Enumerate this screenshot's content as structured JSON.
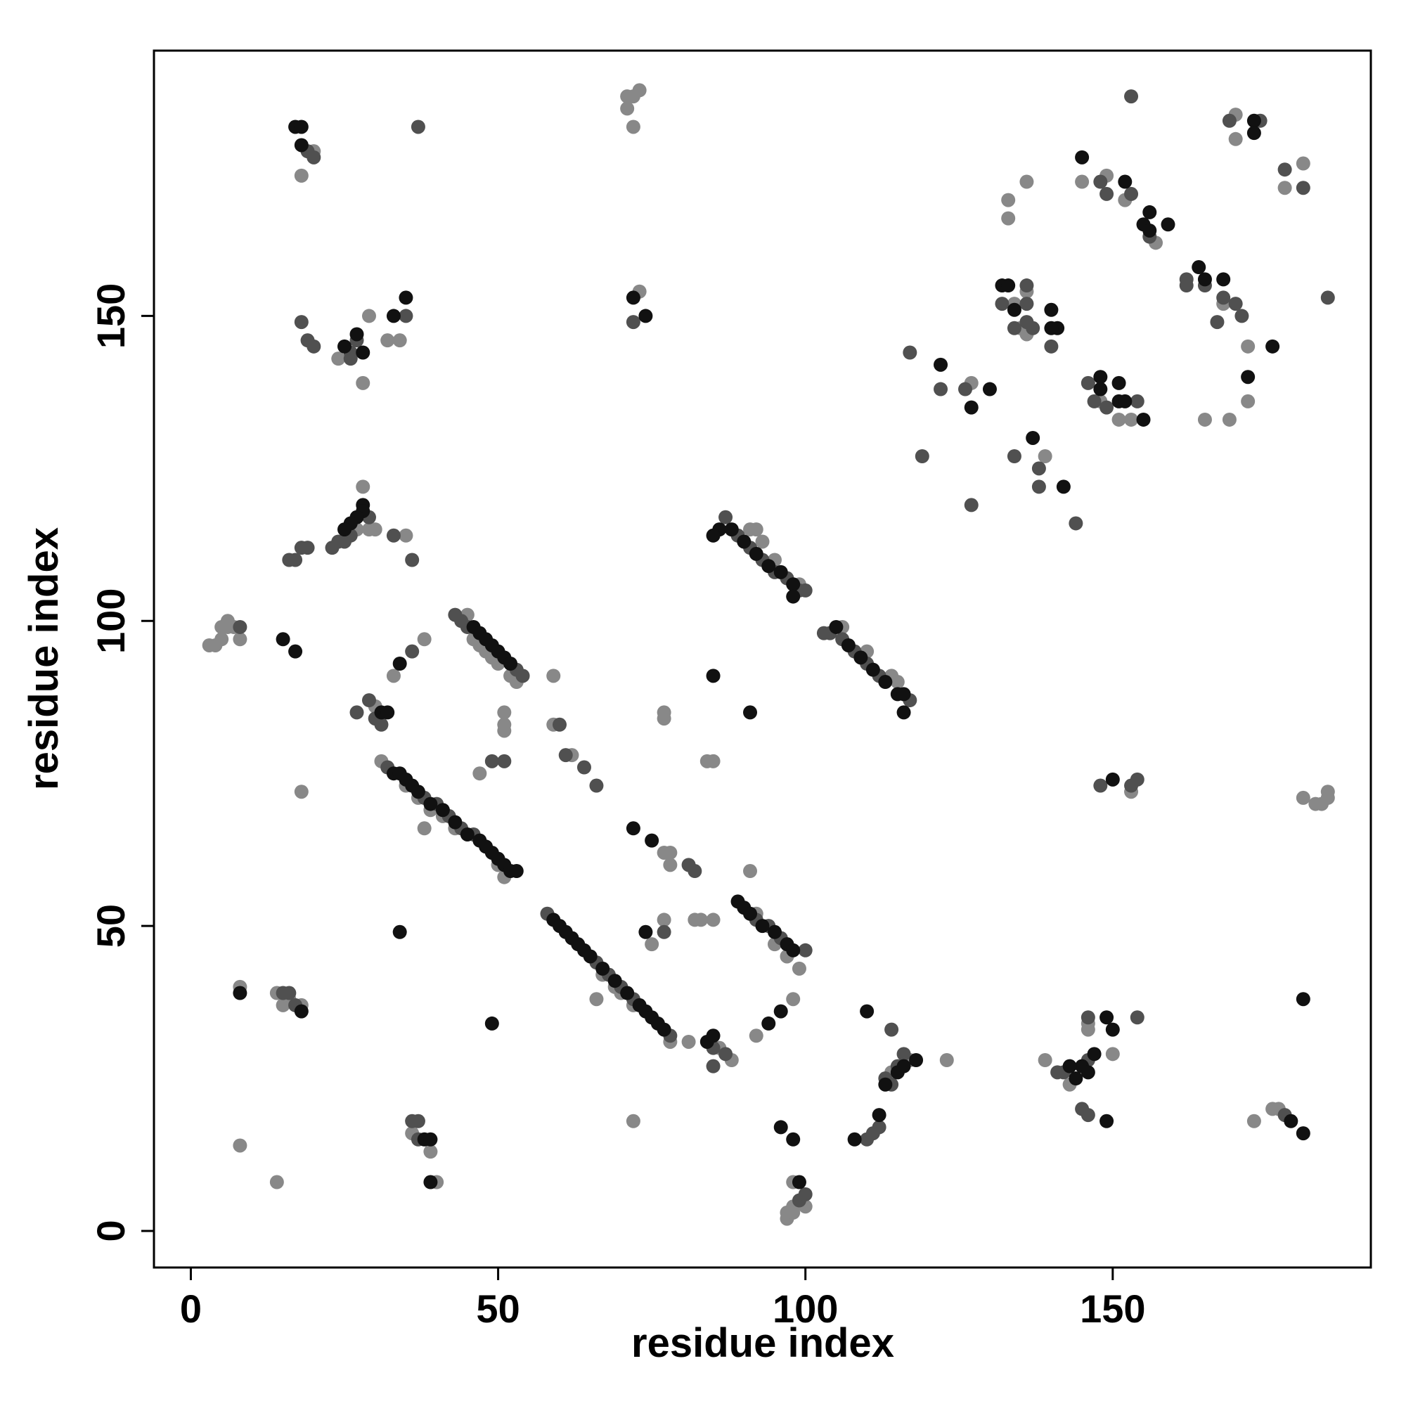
{
  "chart_data": {
    "type": "scatter",
    "xlabel": "residue index",
    "ylabel": "residue index",
    "xlim": [
      -6,
      192
    ],
    "ylim": [
      -6,
      193.5
    ],
    "xticks": [
      0,
      50,
      100,
      150
    ],
    "yticks": [
      0,
      50,
      100,
      150
    ],
    "series": [
      {
        "color": "#888888",
        "x": [
          18,
          20,
          71,
          72,
          71,
          72,
          73,
          24,
          29,
          28,
          34,
          32,
          73,
          170,
          170,
          178,
          181,
          136,
          145,
          149,
          152,
          157,
          133,
          133,
          168,
          172,
          172,
          165,
          169,
          135,
          136,
          127,
          148,
          151,
          153,
          139,
          153,
          181,
          183,
          184,
          185,
          185,
          3,
          4,
          5,
          5,
          6,
          6,
          7,
          8,
          38,
          33,
          28,
          35,
          27,
          29,
          30,
          30,
          18,
          31,
          35,
          37,
          39,
          41,
          43,
          38,
          50,
          51,
          45,
          46,
          47,
          48,
          49,
          50,
          52,
          53,
          47,
          51,
          51,
          51,
          59,
          59,
          62,
          77,
          78,
          78,
          83,
          82,
          85,
          84,
          85,
          77,
          77,
          91,
          66,
          75,
          77,
          67,
          69,
          70,
          72,
          78,
          81,
          86,
          88,
          92,
          98,
          99,
          97,
          95,
          92,
          91,
          92,
          93,
          95,
          99,
          106,
          110,
          114,
          115,
          123,
          97,
          97,
          98,
          98,
          98,
          100,
          139,
          143,
          146,
          146,
          150,
          173,
          176,
          177,
          8,
          14,
          16,
          15,
          18,
          8,
          14,
          36,
          39,
          40,
          72,
          134,
          136,
          114,
          117
        ],
        "values": [
          173,
          177,
          186,
          186,
          184,
          181,
          187,
          143,
          150,
          139,
          146,
          146,
          154,
          179,
          183,
          171,
          175,
          172,
          172,
          173,
          169,
          162,
          169,
          166,
          152,
          145,
          136,
          133,
          133,
          148,
          147,
          139,
          136,
          133,
          133,
          127,
          72,
          71,
          70,
          70,
          71,
          72,
          96,
          96,
          97,
          99,
          99,
          100,
          99,
          97,
          97,
          91,
          122,
          114,
          115,
          115,
          115,
          86,
          72,
          77,
          73,
          71,
          69,
          68,
          66,
          66,
          60,
          58,
          101,
          97,
          96,
          95,
          94,
          93,
          91,
          90,
          75,
          85,
          83,
          82,
          91,
          83,
          78,
          62,
          62,
          60,
          51,
          51,
          51,
          77,
          77,
          85,
          84,
          59,
          38,
          47,
          51,
          42,
          40,
          39,
          37,
          31,
          31,
          30,
          28,
          32,
          38,
          43,
          45,
          47,
          52,
          115,
          115,
          113,
          110,
          106,
          99,
          95,
          91,
          90,
          28,
          2,
          3,
          3,
          4,
          8,
          4,
          28,
          24,
          33,
          34,
          29,
          18,
          20,
          20,
          40,
          39,
          38,
          37,
          37,
          14,
          8,
          16,
          13,
          8,
          18,
          152,
          154,
          26,
          28
        ]
      },
      {
        "color": "#505050",
        "x": [
          19,
          20,
          37,
          18,
          19,
          20,
          26,
          26,
          27,
          35,
          72,
          153,
          169,
          174,
          178,
          181,
          185,
          148,
          153,
          149,
          162,
          165,
          170,
          167,
          171,
          132,
          136,
          136,
          137,
          140,
          117,
          122,
          126,
          146,
          147,
          154,
          149,
          119,
          134,
          138,
          138,
          144,
          127,
          148,
          153,
          154,
          8,
          36,
          16,
          17,
          18,
          19,
          23,
          24,
          25,
          26,
          29,
          33,
          36,
          27,
          30,
          31,
          32,
          38,
          40,
          42,
          44,
          46,
          43,
          44,
          45,
          53,
          54,
          49,
          51,
          60,
          61,
          64,
          66,
          81,
          82,
          58,
          66,
          68,
          70,
          72,
          77,
          78,
          85,
          87,
          85,
          92,
          94,
          96,
          100,
          87,
          89,
          91,
          93,
          95,
          97,
          99,
          100,
          103,
          104,
          106,
          108,
          110,
          112,
          117,
          110,
          111,
          112,
          113,
          114,
          115,
          116,
          114,
          99,
          100,
          141,
          146,
          142,
          146,
          154,
          145,
          146,
          178,
          15,
          16,
          17,
          36,
          37,
          37,
          156,
          162,
          168,
          136,
          134,
          29
        ],
        "values": [
          177,
          176,
          181,
          149,
          146,
          145,
          143,
          144,
          146,
          150,
          149,
          186,
          182,
          182,
          174,
          171,
          153,
          172,
          170,
          170,
          156,
          155,
          152,
          149,
          150,
          152,
          155,
          149,
          148,
          145,
          144,
          138,
          138,
          139,
          136,
          136,
          135,
          127,
          127,
          125,
          122,
          116,
          119,
          73,
          73,
          74,
          99,
          95,
          110,
          110,
          112,
          112,
          112,
          113,
          113,
          114,
          117,
          114,
          110,
          85,
          84,
          83,
          76,
          71,
          70,
          68,
          66,
          65,
          101,
          100,
          99,
          92,
          91,
          77,
          77,
          83,
          78,
          76,
          73,
          60,
          59,
          52,
          44,
          42,
          40,
          38,
          49,
          32,
          30,
          29,
          27,
          51,
          50,
          48,
          46,
          117,
          114,
          112,
          110,
          108,
          107,
          105,
          105,
          98,
          98,
          97,
          95,
          93,
          91,
          87,
          15,
          16,
          17,
          25,
          24,
          27,
          29,
          33,
          5,
          6,
          26,
          28,
          26,
          35,
          35,
          20,
          19,
          19,
          39,
          39,
          37,
          18,
          18,
          15,
          163,
          155,
          153,
          152,
          148,
          87
        ]
      },
      {
        "color": "#111111",
        "x": [
          17,
          18,
          18,
          173,
          173,
          145,
          152,
          156,
          155,
          159,
          156,
          165,
          164,
          168,
          176,
          172,
          132,
          133,
          134,
          140,
          141,
          122,
          127,
          130,
          148,
          148,
          151,
          151,
          152,
          155,
          137,
          142,
          150,
          181,
          15,
          17,
          34,
          28,
          28,
          27,
          26,
          25,
          31,
          32,
          34,
          49,
          33,
          34,
          35,
          36,
          37,
          39,
          41,
          43,
          45,
          47,
          48,
          49,
          50,
          51,
          52,
          53,
          46,
          47,
          48,
          49,
          50,
          51,
          52,
          72,
          75,
          59,
          60,
          61,
          62,
          63,
          64,
          65,
          67,
          69,
          71,
          73,
          74,
          75,
          76,
          77,
          74,
          84,
          85,
          89,
          90,
          91,
          93,
          95,
          97,
          98,
          94,
          96,
          86,
          88,
          90,
          92,
          94,
          96,
          98,
          85,
          98,
          105,
          107,
          109,
          111,
          113,
          115,
          116,
          91,
          85,
          116,
          108,
          112,
          113,
          115,
          116,
          118,
          96,
          98,
          99,
          144,
          145,
          146,
          149,
          150,
          149,
          179,
          181,
          18,
          38,
          39,
          39,
          8,
          110,
          33,
          35,
          74,
          72,
          25,
          27,
          28,
          147,
          143,
          140
        ],
        "values": [
          181,
          181,
          178,
          182,
          180,
          176,
          172,
          167,
          165,
          165,
          164,
          156,
          158,
          156,
          145,
          140,
          155,
          155,
          151,
          151,
          148,
          142,
          135,
          138,
          140,
          138,
          139,
          136,
          136,
          133,
          130,
          122,
          74,
          38,
          97,
          95,
          93,
          119,
          118,
          117,
          116,
          115,
          85,
          85,
          49,
          34,
          75,
          75,
          74,
          73,
          72,
          70,
          69,
          67,
          65,
          64,
          63,
          62,
          61,
          60,
          59,
          59,
          99,
          98,
          97,
          96,
          95,
          94,
          93,
          66,
          64,
          51,
          50,
          49,
          48,
          47,
          46,
          45,
          43,
          41,
          39,
          37,
          36,
          35,
          34,
          33,
          49,
          31,
          32,
          54,
          53,
          52,
          50,
          49,
          47,
          46,
          34,
          36,
          115,
          115,
          113,
          111,
          109,
          108,
          106,
          114,
          104,
          99,
          96,
          94,
          92,
          90,
          88,
          88,
          85,
          91,
          85,
          15,
          19,
          24,
          26,
          27,
          28,
          17,
          15,
          8,
          25,
          27,
          26,
          35,
          33,
          18,
          18,
          16,
          36,
          15,
          15,
          8,
          39,
          36,
          150,
          153,
          150,
          153,
          145,
          147,
          144,
          29,
          27,
          148
        ]
      }
    ]
  }
}
